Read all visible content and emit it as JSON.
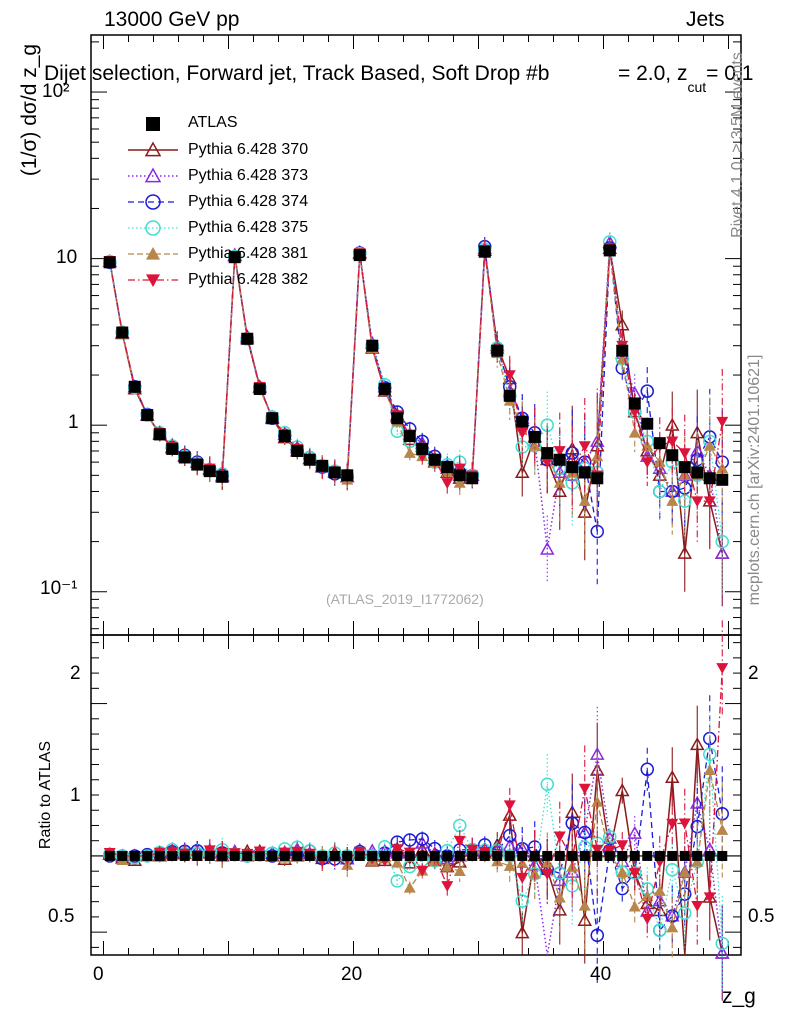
{
  "header": {
    "left": "13000 GeV pp",
    "right": "Jets",
    "title": "Dijet selection, Forward jet, Track Based, Soft Drop #b",
    "title_tail": "= 2.0, z",
    "title_sub": "cut",
    "title_end": "= 0.1"
  },
  "side": {
    "rivet": "Rivet 4.1.0, ≥ 3.5M events",
    "mcplots": "mcplots.cern.ch [arXiv:2401.10621]"
  },
  "watermark": "(ATLAS_2019_I1772062)",
  "colors": {
    "ATLAS": "#000000",
    "Pythia 6.428 370": "#8b1a1a",
    "Pythia 6.428 373": "#8a2be2",
    "Pythia 6.428 374": "#1c1cd6",
    "Pythia 6.428 375": "#40e0d0",
    "Pythia 6.428 381": "#b8864b",
    "Pythia 6.428 382": "#dc143c"
  },
  "chart_data": {
    "type": "scatter",
    "title": "Dijet selection, Forward jet, Track Based, Soft Drop #b = 2.0, z_cut = 0.1",
    "xlabel": "z_g",
    "ylabel": "(1/σ) dσ/d z_g",
    "ratio_ylabel": "Ratio to ATLAS",
    "xlim": [
      -1,
      51
    ],
    "ylim": [
      0.055,
      220
    ],
    "ratio_ylim": [
      0.35,
      2.45
    ],
    "yscale": "log",
    "x_ticks": [
      0,
      20,
      40
    ],
    "y_tick_labels": [
      "10⁻¹",
      "1",
      "10",
      "10²"
    ],
    "ratio_tick_labels": [
      "0.5",
      "1",
      "2"
    ],
    "legend_position": "top-left",
    "x": [
      0.5,
      1.5,
      2.5,
      3.5,
      4.5,
      5.5,
      6.5,
      7.5,
      8.5,
      9.5,
      10.5,
      11.5,
      12.5,
      13.5,
      14.5,
      15.5,
      16.5,
      17.5,
      18.5,
      19.5,
      20.5,
      21.5,
      22.5,
      23.5,
      24.5,
      25.5,
      26.5,
      27.5,
      28.5,
      29.5,
      30.5,
      31.5,
      32.5,
      33.5,
      34.5,
      35.5,
      36.5,
      37.5,
      38.5,
      39.5,
      40.5,
      41.5,
      42.5,
      43.5,
      44.5,
      45.5,
      46.5,
      47.5,
      48.5,
      49.5
    ],
    "series": [
      {
        "name": "ATLAS",
        "values": [
          9.5,
          3.6,
          1.7,
          1.15,
          0.88,
          0.72,
          0.64,
          0.58,
          0.53,
          0.49,
          10.2,
          3.3,
          1.65,
          1.1,
          0.86,
          0.7,
          0.62,
          0.57,
          0.52,
          0.5,
          10.5,
          3.0,
          1.65,
          1.1,
          0.86,
          0.72,
          0.62,
          0.56,
          0.5,
          0.48,
          11.0,
          2.8,
          1.5,
          1.05,
          0.85,
          0.68,
          0.62,
          0.56,
          0.52,
          0.48,
          11.2,
          2.8,
          1.35,
          1.02,
          0.78,
          0.66,
          0.56,
          0.52,
          0.48,
          0.47
        ]
      },
      {
        "name": "Pythia 6.428 370",
        "values": [
          9.6,
          3.55,
          1.65,
          1.15,
          0.88,
          0.73,
          0.65,
          0.6,
          0.54,
          0.49,
          10.4,
          3.4,
          1.7,
          1.1,
          0.84,
          0.7,
          0.63,
          0.56,
          0.53,
          0.49,
          10.7,
          2.9,
          1.6,
          1.15,
          0.82,
          0.75,
          0.6,
          0.52,
          0.48,
          0.5,
          11.2,
          3.0,
          1.9,
          0.52,
          0.85,
          0.62,
          0.4,
          0.72,
          0.3,
          0.75,
          11.5,
          4.0,
          1.2,
          0.7,
          0.5,
          1.0,
          0.17,
          0.9,
          0.35,
          0.17
        ]
      },
      {
        "name": "Pythia 6.428 373",
        "values": [
          9.6,
          3.6,
          1.7,
          1.15,
          0.9,
          0.74,
          0.66,
          0.6,
          0.55,
          0.5,
          10.5,
          3.3,
          1.68,
          1.12,
          0.88,
          0.73,
          0.63,
          0.57,
          0.52,
          0.49,
          10.9,
          3.1,
          1.7,
          1.12,
          0.88,
          0.78,
          0.63,
          0.55,
          0.5,
          0.5,
          11.5,
          2.9,
          1.6,
          1.1,
          0.8,
          0.18,
          0.52,
          0.5,
          0.6,
          0.8,
          12.5,
          2.7,
          1.55,
          0.65,
          0.55,
          0.4,
          0.5,
          0.7,
          0.5,
          0.17
        ]
      },
      {
        "name": "Pythia 6.428 374",
        "values": [
          9.5,
          3.6,
          1.7,
          1.16,
          0.89,
          0.74,
          0.66,
          0.6,
          0.54,
          0.5,
          10.3,
          3.3,
          1.67,
          1.1,
          0.87,
          0.71,
          0.64,
          0.56,
          0.51,
          0.49,
          10.8,
          3.0,
          1.68,
          1.2,
          0.95,
          0.8,
          0.65,
          0.56,
          0.52,
          0.5,
          11.8,
          2.9,
          1.7,
          1.1,
          0.9,
          0.62,
          0.55,
          0.68,
          0.6,
          0.23,
          11.6,
          2.2,
          1.2,
          1.6,
          0.4,
          0.4,
          0.42,
          0.62,
          0.85,
          0.6
        ]
      },
      {
        "name": "Pythia 6.428 375",
        "values": [
          9.6,
          3.6,
          1.68,
          1.15,
          0.9,
          0.75,
          0.65,
          0.59,
          0.54,
          0.51,
          10.3,
          3.3,
          1.66,
          1.12,
          0.9,
          0.74,
          0.64,
          0.57,
          0.53,
          0.5,
          10.7,
          3.0,
          1.75,
          0.92,
          0.8,
          0.7,
          0.6,
          0.58,
          0.6,
          0.5,
          11.4,
          2.9,
          1.5,
          0.74,
          0.75,
          1.0,
          0.55,
          0.45,
          0.55,
          0.52,
          12.6,
          2.5,
          1.2,
          0.8,
          0.4,
          0.6,
          0.35,
          0.5,
          0.8,
          0.2
        ]
      },
      {
        "name": "Pythia 6.428 381",
        "values": [
          9.6,
          3.5,
          1.7,
          1.15,
          0.88,
          0.73,
          0.65,
          0.58,
          0.54,
          0.49,
          10.3,
          3.3,
          1.65,
          1.1,
          0.85,
          0.7,
          0.62,
          0.57,
          0.52,
          0.47,
          10.6,
          2.9,
          1.62,
          1.05,
          0.68,
          0.65,
          0.6,
          0.52,
          0.45,
          0.5,
          11.0,
          2.7,
          1.4,
          1.0,
          0.75,
          0.65,
          0.45,
          0.52,
          0.35,
          0.65,
          11.3,
          2.5,
          0.9,
          0.75,
          0.6,
          0.35,
          0.5,
          0.5,
          0.75,
          0.55
        ]
      },
      {
        "name": "Pythia 6.428 382",
        "values": [
          9.7,
          3.6,
          1.7,
          1.15,
          0.9,
          0.74,
          0.65,
          0.58,
          0.55,
          0.5,
          10.4,
          3.35,
          1.7,
          1.1,
          0.88,
          0.72,
          0.63,
          0.55,
          0.52,
          0.49,
          10.8,
          2.95,
          1.6,
          1.15,
          0.88,
          0.65,
          0.62,
          0.45,
          0.55,
          0.5,
          11.3,
          2.8,
          2.0,
          0.9,
          0.85,
          0.6,
          0.7,
          0.55,
          0.75,
          0.5,
          11.6,
          3.0,
          1.2,
          0.6,
          0.75,
          0.8,
          0.68,
          0.35,
          0.35,
          1.05
        ]
      }
    ]
  }
}
